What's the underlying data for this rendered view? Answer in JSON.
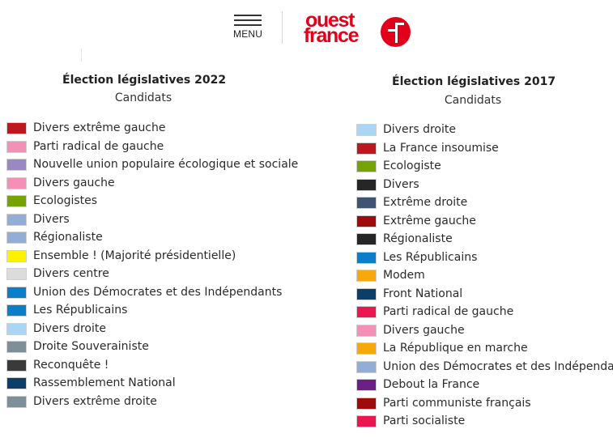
{
  "header": {
    "menu_label": "MENU",
    "logo_line1": "ouest",
    "logo_line2": "france",
    "brand_color": "#e2001a"
  },
  "legend_2022": {
    "title": "Élection législatives 2022",
    "subtitle": "Candidats",
    "items": [
      {
        "label": "Divers extrême gauche",
        "color": "#c0161e"
      },
      {
        "label": "Parti radical de gauche",
        "color": "#f490b6"
      },
      {
        "label": "Nouvelle union populaire écologique et sociale",
        "color": "#9a88c4"
      },
      {
        "label": "Divers gauche",
        "color": "#f490b6"
      },
      {
        "label": "Ecologistes",
        "color": "#77a300"
      },
      {
        "label": "Divers",
        "color": "#93add9"
      },
      {
        "label": "Régionaliste",
        "color": "#93add9"
      },
      {
        "label": "Ensemble ! (Majorité présidentielle)",
        "color": "#fff200"
      },
      {
        "label": "Divers centre",
        "color": "#dcdcdc"
      },
      {
        "label": "Union des Démocrates et des Indépendants",
        "color": "#0a7fc9"
      },
      {
        "label": "Les Républicains",
        "color": "#0a7fc9"
      },
      {
        "label": "Divers droite",
        "color": "#a9d6f5"
      },
      {
        "label": "Droite Souverainiste",
        "color": "#7e8f99"
      },
      {
        "label": "Reconquête !",
        "color": "#3a3a3a"
      },
      {
        "label": "Rassemblement National",
        "color": "#0b3f6a"
      },
      {
        "label": "Divers extrême droite",
        "color": "#7e8f99"
      }
    ]
  },
  "legend_2017": {
    "title": "Élection législatives 2017",
    "subtitle": "Candidats",
    "items": [
      {
        "label": "Divers droite",
        "color": "#a9d6f5"
      },
      {
        "label": "La France insoumise",
        "color": "#c0161e"
      },
      {
        "label": "Ecologiste",
        "color": "#77a300"
      },
      {
        "label": "Divers",
        "color": "#262626"
      },
      {
        "label": "Extrême droite",
        "color": "#3f5374"
      },
      {
        "label": "Extrême gauche",
        "color": "#9f0a0a"
      },
      {
        "label": "Régionaliste",
        "color": "#262626"
      },
      {
        "label": "Les Républicains",
        "color": "#0a7fc9"
      },
      {
        "label": "Modem",
        "color": "#f9a80b"
      },
      {
        "label": "Front National",
        "color": "#0b3f6a"
      },
      {
        "label": "Parti radical de gauche",
        "color": "#ec1550"
      },
      {
        "label": "Divers gauche",
        "color": "#f490b6"
      },
      {
        "label": "La République en marche",
        "color": "#f9a80b"
      },
      {
        "label": "Union des Démocrates et des Indépendants",
        "color": "#93add9"
      },
      {
        "label": "Debout la France",
        "color": "#6c1f86"
      },
      {
        "label": "Parti communiste français",
        "color": "#9f0a0a"
      },
      {
        "label": "Parti socialiste",
        "color": "#ec1550"
      }
    ]
  }
}
